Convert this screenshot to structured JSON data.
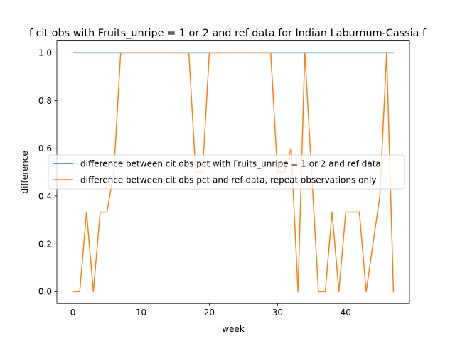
{
  "chart_data": {
    "type": "line",
    "title": "f cit obs with Fruits_unripe = 1 or 2 and ref data for Indian Laburnum-Cassia f",
    "xlabel": "week",
    "ylabel": "difference",
    "xlim": [
      -2.35,
      49.35
    ],
    "ylim": [
      -0.05,
      1.05
    ],
    "xticks": [
      0,
      10,
      20,
      30,
      40
    ],
    "yticks": [
      0.0,
      0.2,
      0.4,
      0.6,
      0.8,
      1.0
    ],
    "xtick_labels": [
      "0",
      "10",
      "20",
      "30",
      "40"
    ],
    "ytick_labels": [
      "0.0",
      "0.2",
      "0.4",
      "0.6",
      "0.8",
      "1.0"
    ],
    "grid": false,
    "legend_position": "center-right",
    "series": [
      {
        "name": "difference between cit obs pct with Fruits_unripe = 1 or 2 and ref data",
        "color": "#1f77b4",
        "x": [
          0,
          47
        ],
        "y": [
          1.0,
          1.0
        ]
      },
      {
        "name": "difference between cit obs pct and ref data, repeat observations only",
        "color": "#ff7f0e",
        "x": [
          0,
          1,
          2,
          3,
          4,
          5,
          6,
          7,
          8,
          9,
          10,
          11,
          12,
          13,
          14,
          15,
          16,
          17,
          18,
          19,
          20,
          21,
          22,
          23,
          24,
          25,
          26,
          27,
          28,
          29,
          30,
          31,
          32,
          33,
          34,
          35,
          36,
          37,
          38,
          39,
          40,
          41,
          42,
          43,
          44,
          45,
          46,
          47
        ],
        "y": [
          0,
          0,
          0.333,
          0,
          0.333,
          0.333,
          0.5,
          1,
          1,
          1,
          1,
          1,
          1,
          1,
          1,
          1,
          1,
          1,
          0.5,
          0.5,
          1,
          1,
          1,
          1,
          1,
          1,
          1,
          1,
          1,
          1,
          0.5,
          0.5,
          0.6,
          0,
          1,
          0.5,
          0,
          0,
          0.333,
          0,
          0.333,
          0.333,
          0.333,
          0,
          0.2,
          0.4,
          1,
          0
        ]
      }
    ]
  }
}
